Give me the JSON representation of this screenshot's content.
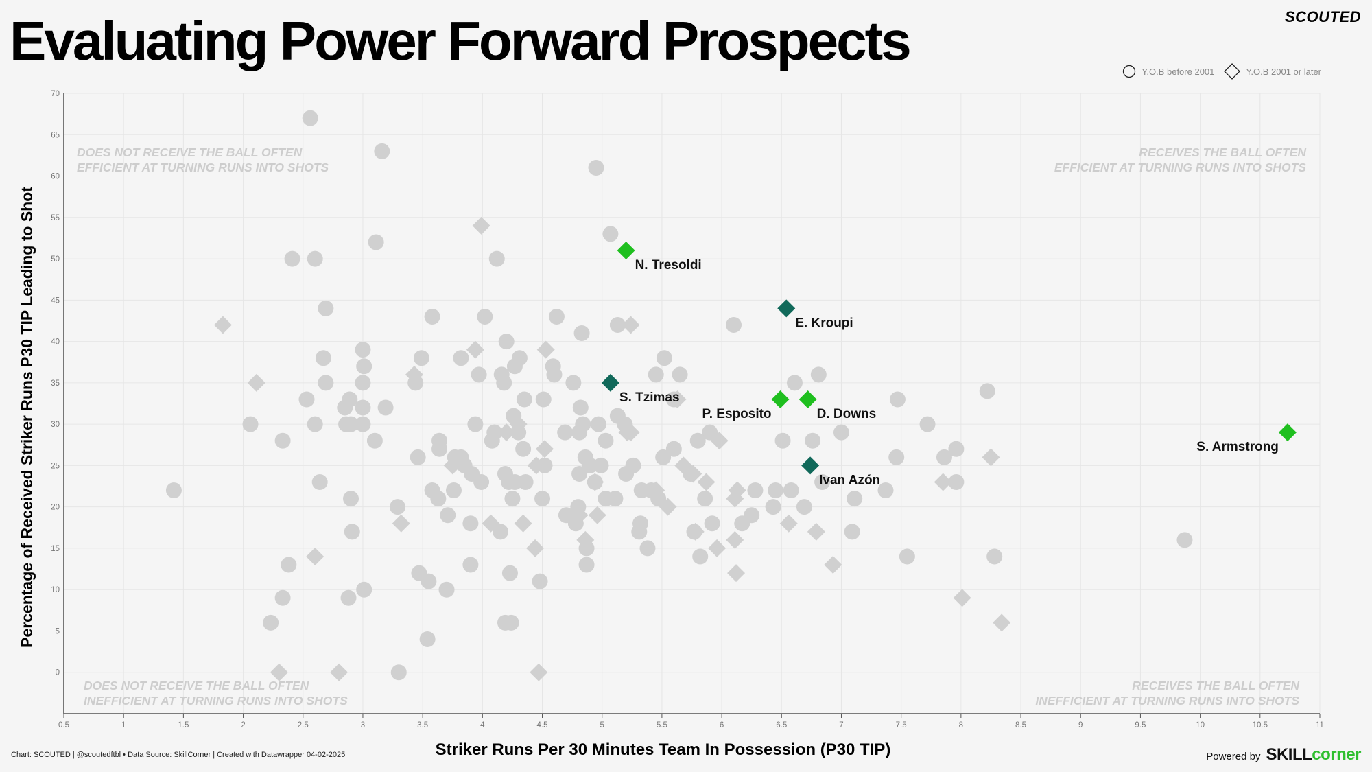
{
  "header": {
    "title": "Evaluating Power Forward Prospects",
    "brand": "SCOUTED"
  },
  "legend": {
    "circle_label": "Y.O.B before 2001",
    "diamond_label": "Y.O.B 2001 or later"
  },
  "footer": {
    "credit": "Chart: SCOUTED | @scoutedftbl • Data Source: SkillCorner | Created with Datawrapper 04-02-2025",
    "powered_by": "Powered by",
    "logo_part1": "SKILL",
    "logo_part2": "corner"
  },
  "colors": {
    "background": "#f5f5f5",
    "points": "#d0d0d0",
    "highlight_bright": "#1fbf1f",
    "highlight_dark": "#11695a",
    "grid": "#e6e6e6",
    "logo_green": "#2fbf2f"
  },
  "chart_data": {
    "type": "scatter",
    "title": "Evaluating Power Forward Prospects",
    "xlabel": "Striker Runs Per 30 Minutes Team In Possession (P30 TIP)",
    "ylabel": "Percentage of Received Striker Runs P30 TIP Leading to Shot",
    "xlim": [
      0.5,
      11
    ],
    "ylim": [
      -5,
      70
    ],
    "x_ticks": [
      "0.5",
      "1",
      "1.5",
      "2",
      "2.5",
      "3",
      "3.5",
      "4",
      "4.5",
      "5",
      "5.5",
      "6",
      "6.5",
      "7",
      "7.5",
      "8",
      "8.5",
      "9",
      "9.5",
      "10",
      "10.5",
      "11"
    ],
    "y_ticks": [
      "0",
      "5",
      "10",
      "15",
      "20",
      "25",
      "30",
      "35",
      "40",
      "45",
      "50",
      "55",
      "60",
      "65",
      "70"
    ],
    "grid": true,
    "legend_position": "top-right",
    "quadrant_labels": {
      "top_left": [
        "DOES NOT RECEIVE THE BALL OFTEN",
        "EFFICIENT AT TURNING RUNS INTO SHOTS"
      ],
      "top_right": [
        "RECEIVES THE BALL OFTEN",
        "EFFICIENT AT TURNING RUNS INTO SHOTS"
      ],
      "bottom_left": [
        "DOES NOT RECEIVE THE BALL OFTEN",
        "INEFFICIENT AT TURNING RUNS INTO SHOTS"
      ],
      "bottom_right": [
        "RECEIVES THE BALL OFTEN",
        "INEFFICIENT AT TURNING RUNS INTO SHOTS"
      ]
    },
    "highlighted": [
      {
        "name": "N. Tresoldi",
        "x": 5.2,
        "y": 51,
        "shape": "diamond",
        "color": "bright",
        "label_side": "right"
      },
      {
        "name": "E. Kroupi",
        "x": 6.54,
        "y": 44,
        "shape": "diamond",
        "color": "dark",
        "label_side": "right"
      },
      {
        "name": "S. Tzimas",
        "x": 5.07,
        "y": 35,
        "shape": "diamond",
        "color": "dark",
        "label_side": "right"
      },
      {
        "name": "P. Esposito",
        "x": 6.49,
        "y": 33,
        "shape": "diamond",
        "color": "bright",
        "label_side": "left"
      },
      {
        "name": "D. Downs",
        "x": 6.72,
        "y": 33,
        "shape": "diamond",
        "color": "bright",
        "label_side": "right"
      },
      {
        "name": "Ivan Azón",
        "x": 6.74,
        "y": 25,
        "shape": "diamond",
        "color": "dark",
        "label_side": "right"
      },
      {
        "name": "S. Armstrong",
        "x": 10.73,
        "y": 29,
        "shape": "diamond",
        "color": "bright",
        "label_side": "left"
      }
    ],
    "circles": [
      [
        2.56,
        67
      ],
      [
        3.16,
        63
      ],
      [
        4.95,
        61
      ],
      [
        5.07,
        53
      ],
      [
        3.11,
        52
      ],
      [
        2.41,
        50
      ],
      [
        2.6,
        50
      ],
      [
        4.12,
        50
      ],
      [
        2.69,
        44
      ],
      [
        3.58,
        43
      ],
      [
        4.02,
        43
      ],
      [
        4.62,
        43
      ],
      [
        5.13,
        42
      ],
      [
        4.83,
        41
      ],
      [
        6.1,
        42
      ],
      [
        2.67,
        38
      ],
      [
        3.49,
        38
      ],
      [
        3.82,
        38
      ],
      [
        4.2,
        40
      ],
      [
        4.31,
        38
      ],
      [
        5.52,
        38
      ],
      [
        3.0,
        39
      ],
      [
        3.01,
        37
      ],
      [
        4.59,
        37
      ],
      [
        4.6,
        36
      ],
      [
        4.27,
        37
      ],
      [
        3.97,
        36
      ],
      [
        4.16,
        36
      ],
      [
        2.69,
        35
      ],
      [
        3.0,
        35
      ],
      [
        3.44,
        35
      ],
      [
        4.18,
        35
      ],
      [
        4.76,
        35
      ],
      [
        5.45,
        36
      ],
      [
        5.65,
        36
      ],
      [
        6.61,
        35
      ],
      [
        6.81,
        36
      ],
      [
        2.53,
        33
      ],
      [
        2.89,
        33
      ],
      [
        2.85,
        32
      ],
      [
        3.0,
        32
      ],
      [
        3.19,
        32
      ],
      [
        4.51,
        33
      ],
      [
        4.35,
        33
      ],
      [
        4.82,
        32
      ],
      [
        5.6,
        33
      ],
      [
        8.22,
        34
      ],
      [
        7.47,
        33
      ],
      [
        2.06,
        30
      ],
      [
        2.6,
        30
      ],
      [
        2.86,
        30
      ],
      [
        2.9,
        30
      ],
      [
        3.0,
        30
      ],
      [
        3.94,
        30
      ],
      [
        4.08,
        28
      ],
      [
        4.26,
        31
      ],
      [
        4.3,
        29
      ],
      [
        4.69,
        29
      ],
      [
        4.81,
        29
      ],
      [
        4.84,
        30
      ],
      [
        4.97,
        30
      ],
      [
        5.13,
        31
      ],
      [
        5.19,
        30
      ],
      [
        5.9,
        29
      ],
      [
        5.8,
        28
      ],
      [
        6.51,
        28
      ],
      [
        6.76,
        28
      ],
      [
        7.0,
        29
      ],
      [
        7.72,
        30
      ],
      [
        2.33,
        28
      ],
      [
        3.1,
        28
      ],
      [
        3.46,
        26
      ],
      [
        3.64,
        28
      ],
      [
        3.64,
        27
      ],
      [
        3.77,
        26
      ],
      [
        3.82,
        26
      ],
      [
        4.1,
        29
      ],
      [
        4.34,
        27
      ],
      [
        4.86,
        26
      ],
      [
        4.9,
        25
      ],
      [
        4.99,
        25
      ],
      [
        5.03,
        28
      ],
      [
        5.2,
        24
      ],
      [
        5.26,
        25
      ],
      [
        5.51,
        26
      ],
      [
        5.6,
        27
      ],
      [
        7.46,
        26
      ],
      [
        7.86,
        26
      ],
      [
        7.96,
        27
      ],
      [
        2.64,
        23
      ],
      [
        2.9,
        21
      ],
      [
        2.91,
        17
      ],
      [
        3.01,
        10
      ],
      [
        3.29,
        20
      ],
      [
        3.58,
        22
      ],
      [
        3.63,
        21
      ],
      [
        3.71,
        19
      ],
      [
        3.76,
        22
      ],
      [
        3.85,
        25
      ],
      [
        3.91,
        24
      ],
      [
        3.99,
        23
      ],
      [
        4.19,
        24
      ],
      [
        4.22,
        23
      ],
      [
        4.25,
        21
      ],
      [
        4.27,
        23
      ],
      [
        4.36,
        23
      ],
      [
        4.5,
        21
      ],
      [
        4.52,
        25
      ],
      [
        4.7,
        19
      ],
      [
        4.78,
        18
      ],
      [
        4.8,
        20
      ],
      [
        4.81,
        24
      ],
      [
        4.94,
        23
      ],
      [
        5.03,
        21
      ],
      [
        5.11,
        21
      ],
      [
        5.31,
        17
      ],
      [
        5.32,
        18
      ],
      [
        5.33,
        22
      ],
      [
        5.41,
        22
      ],
      [
        5.47,
        21
      ],
      [
        5.77,
        17
      ],
      [
        5.86,
        21
      ],
      [
        5.82,
        14
      ],
      [
        5.74,
        24
      ],
      [
        5.92,
        18
      ],
      [
        6.25,
        19
      ],
      [
        6.28,
        22
      ],
      [
        6.43,
        20
      ],
      [
        6.45,
        22
      ],
      [
        6.58,
        22
      ],
      [
        6.69,
        20
      ],
      [
        6.84,
        23
      ],
      [
        7.11,
        21
      ],
      [
        7.37,
        22
      ],
      [
        7.96,
        23
      ],
      [
        9.87,
        16
      ],
      [
        1.42,
        22
      ],
      [
        2.38,
        13
      ],
      [
        2.33,
        9
      ],
      [
        2.23,
        6
      ],
      [
        2.88,
        9
      ],
      [
        3.3,
        0
      ],
      [
        3.47,
        12
      ],
      [
        3.55,
        11
      ],
      [
        3.54,
        4
      ],
      [
        3.7,
        10
      ],
      [
        3.9,
        13
      ],
      [
        3.9,
        18
      ],
      [
        4.15,
        17
      ],
      [
        4.19,
        6
      ],
      [
        4.24,
        6
      ],
      [
        4.23,
        12
      ],
      [
        4.48,
        11
      ],
      [
        4.87,
        15
      ],
      [
        4.87,
        13
      ],
      [
        5.38,
        15
      ],
      [
        7.09,
        17
      ],
      [
        7.55,
        14
      ],
      [
        8.28,
        14
      ],
      [
        6.17,
        18
      ]
    ],
    "diamonds": [
      [
        1.83,
        42
      ],
      [
        2.11,
        35
      ],
      [
        3.43,
        36
      ],
      [
        3.94,
        39
      ],
      [
        4.53,
        39
      ],
      [
        5.24,
        42
      ],
      [
        5.63,
        33
      ],
      [
        5.98,
        28
      ],
      [
        5.76,
        24
      ],
      [
        6.11,
        21
      ],
      [
        5.87,
        23
      ],
      [
        6.13,
        22
      ],
      [
        8.25,
        26
      ],
      [
        7.85,
        23
      ],
      [
        8.01,
        9
      ],
      [
        8.34,
        6
      ],
      [
        6.93,
        13
      ],
      [
        6.79,
        17
      ],
      [
        6.56,
        18
      ],
      [
        6.11,
        16
      ],
      [
        6.12,
        12
      ],
      [
        5.96,
        15
      ],
      [
        5.55,
        20
      ],
      [
        5.45,
        22
      ],
      [
        5.78,
        17
      ],
      [
        5.68,
        25
      ],
      [
        5.24,
        29
      ],
      [
        5.21,
        29
      ],
      [
        4.96,
        19
      ],
      [
        4.94,
        23
      ],
      [
        4.86,
        16
      ],
      [
        4.81,
        19
      ],
      [
        4.52,
        27
      ],
      [
        4.45,
        25
      ],
      [
        4.44,
        15
      ],
      [
        4.34,
        18
      ],
      [
        4.3,
        30
      ],
      [
        4.2,
        29
      ],
      [
        4.07,
        18
      ],
      [
        3.99,
        54
      ],
      [
        3.32,
        18
      ],
      [
        2.6,
        14
      ],
      [
        2.3,
        0
      ],
      [
        2.8,
        0
      ],
      [
        4.47,
        0
      ],
      [
        3.75,
        25
      ]
    ]
  }
}
